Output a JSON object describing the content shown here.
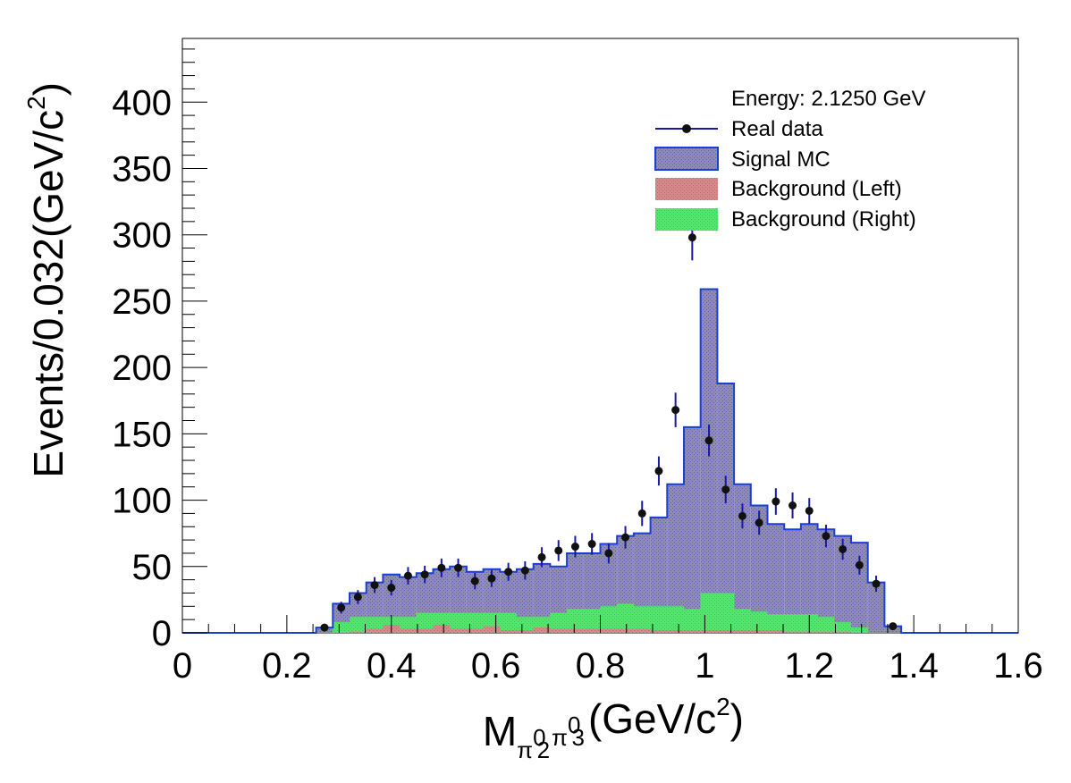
{
  "chart_data": {
    "type": "bar",
    "title": "",
    "xlabel": {
      "main": "M",
      "sub1": "π",
      "sup1": "0",
      "idx1": "2",
      "sub2": "π",
      "sup2": "0",
      "idx2": "3",
      "unit": "(GeV/c",
      "unit_sup": "2",
      "unit_end": ")"
    },
    "ylabel": {
      "main": "Events/0.032(GeV/c",
      "sup": "2",
      "end": ")"
    },
    "xlim": [
      0,
      1.6
    ],
    "ylim": [
      0,
      448
    ],
    "x_ticks": [
      "0",
      "0.2",
      "0.4",
      "0.6",
      "0.8",
      "1",
      "1.2",
      "1.4",
      "1.6"
    ],
    "y_ticks": [
      "0",
      "50",
      "100",
      "150",
      "200",
      "250",
      "300",
      "350",
      "400"
    ],
    "bin_width": 0.032,
    "bin_start": 0,
    "grid": false,
    "legend_position": "top-right",
    "legend": {
      "header": "Energy: 2.1250 GeV",
      "entries": [
        "Real data",
        "Signal MC",
        "Background (Left)",
        "Background (Right)"
      ]
    },
    "colors": {
      "signal_fill": "#8f8f9f",
      "signal_line": "#1a3fd6",
      "bkg_left": "#d48a8a",
      "bkg_right": "#54e56e",
      "data_marker": "#111111",
      "data_error": "#1a1aa0"
    },
    "series": [
      {
        "name": "Signal MC",
        "values": [
          0,
          0,
          0,
          0,
          0,
          0,
          0,
          0,
          4,
          22,
          30,
          38,
          44,
          42,
          45,
          48,
          50,
          46,
          48,
          46,
          48,
          52,
          50,
          60,
          60,
          67,
          73,
          75,
          87,
          112,
          155,
          259,
          188,
          112,
          96,
          82,
          78,
          82,
          78,
          73,
          68,
          38,
          5,
          0,
          0,
          0,
          0,
          0,
          0,
          0
        ]
      },
      {
        "name": "Background (Left)",
        "values": [
          0,
          0,
          0,
          0,
          0,
          0,
          0,
          0,
          0,
          0,
          1,
          3,
          6,
          3,
          3,
          6,
          3,
          3,
          5,
          2,
          2,
          4,
          3,
          3,
          3,
          3,
          3,
          3,
          2,
          2,
          2,
          2,
          2,
          2,
          2,
          2,
          1,
          1,
          1,
          1,
          0,
          0,
          0,
          0,
          0,
          0,
          0,
          0,
          0,
          0
        ]
      },
      {
        "name": "Background (Right)",
        "values": [
          0,
          0,
          0,
          0,
          0,
          0,
          0,
          0,
          0,
          8,
          12,
          12,
          12,
          12,
          15,
          15,
          15,
          15,
          15,
          15,
          12,
          12,
          15,
          18,
          18,
          20,
          22,
          20,
          20,
          20,
          18,
          30,
          30,
          18,
          16,
          14,
          14,
          14,
          12,
          8,
          4,
          0,
          0,
          0,
          0,
          0,
          0,
          0,
          0,
          0
        ]
      },
      {
        "name": "Real data",
        "x": [
          0.272,
          0.304,
          0.336,
          0.368,
          0.4,
          0.432,
          0.464,
          0.496,
          0.528,
          0.56,
          0.592,
          0.624,
          0.656,
          0.688,
          0.72,
          0.752,
          0.784,
          0.816,
          0.848,
          0.88,
          0.912,
          0.944,
          0.976,
          1.008,
          1.04,
          1.072,
          1.104,
          1.136,
          1.168,
          1.2,
          1.232,
          1.264,
          1.296,
          1.328,
          1.36
        ],
        "y": [
          4,
          19,
          27,
          36,
          34,
          43,
          44,
          49,
          49,
          39,
          41,
          46,
          47,
          57,
          62,
          65,
          67,
          60,
          72,
          90,
          122,
          168,
          298,
          145,
          108,
          88,
          83,
          99,
          96,
          92,
          73,
          63,
          51,
          37,
          5
        ],
        "err": [
          2,
          4.4,
          5.2,
          6,
          5.8,
          6.6,
          6.6,
          7,
          7,
          6.2,
          6.4,
          6.8,
          6.9,
          7.5,
          7.9,
          8.1,
          8.2,
          7.7,
          8.5,
          9.5,
          11,
          13,
          17.3,
          12,
          10.4,
          9.4,
          9.1,
          10,
          9.8,
          9.6,
          8.5,
          7.9,
          7.1,
          6.1,
          2.2
        ]
      }
    ]
  }
}
